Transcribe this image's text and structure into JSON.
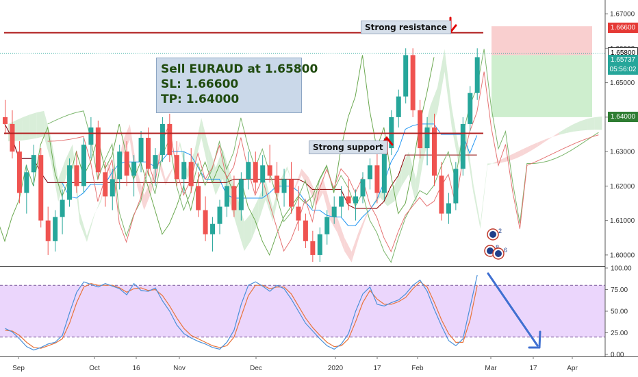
{
  "chart_data": [
    {
      "type": "candlestick",
      "panel": "price",
      "price_axis": {
        "min": 1.597,
        "max": 1.674,
        "ticks": [
          "1.67000",
          "1.66000",
          "1.65000",
          "1.64000",
          "1.63000",
          "1.62000",
          "1.61000",
          "1.60000"
        ]
      },
      "time_axis": {
        "ticks": [
          "Sep",
          "Oct",
          "16",
          "Nov",
          "Dec",
          "2020",
          "17",
          "Feb",
          "Mar",
          "17",
          "Apr"
        ]
      },
      "horizontal_levels": [
        {
          "id": "resistance",
          "value": 1.6645,
          "color": "#b22222",
          "label": "Strong resistance"
        },
        {
          "id": "support",
          "value": 1.6353,
          "color": "#b22222",
          "label": "Strong support"
        }
      ],
      "current_price_line": 1.6585,
      "price_tags": [
        {
          "value": "1.66600",
          "y": 1.666,
          "bg": "#e53935",
          "fg": "#ffffff"
        },
        {
          "value": "1.65800",
          "y": 1.6587,
          "bg": "#ffffff",
          "fg": "#000000"
        },
        {
          "value": "1.65737",
          "y": 1.6566,
          "bg": "#26a69a",
          "fg": "#ffffff"
        },
        {
          "value": "05:56:02",
          "y": 1.6538,
          "bg": "#26a69a",
          "fg": "#ffffff"
        },
        {
          "value": "1.64000",
          "y": 1.64,
          "bg": "#2e7d32",
          "fg": "#ffffff"
        }
      ],
      "trade_setup": {
        "entry": 1.658,
        "stop_loss": 1.666,
        "take_profit": 1.64,
        "loss_color": "#f8c7c7",
        "profit_color": "#c9ecc9"
      },
      "ohlc": [
        [
          1.64,
          1.645,
          1.635,
          1.638
        ],
        [
          1.638,
          1.642,
          1.628,
          1.63
        ],
        [
          1.63,
          1.633,
          1.615,
          1.618
        ],
        [
          1.618,
          1.626,
          1.612,
          1.624
        ],
        [
          1.624,
          1.632,
          1.62,
          1.629
        ],
        [
          1.629,
          1.631,
          1.608,
          1.61
        ],
        [
          1.61,
          1.614,
          1.6,
          1.604
        ],
        [
          1.604,
          1.613,
          1.601,
          1.611
        ],
        [
          1.611,
          1.619,
          1.606,
          1.616
        ],
        [
          1.616,
          1.628,
          1.614,
          1.626
        ],
        [
          1.626,
          1.63,
          1.618,
          1.62
        ],
        [
          1.62,
          1.634,
          1.618,
          1.632
        ],
        [
          1.632,
          1.64,
          1.628,
          1.637
        ],
        [
          1.637,
          1.639,
          1.622,
          1.624
        ],
        [
          1.624,
          1.627,
          1.614,
          1.617
        ],
        [
          1.617,
          1.625,
          1.613,
          1.622
        ],
        [
          1.622,
          1.632,
          1.619,
          1.63
        ],
        [
          1.63,
          1.633,
          1.62,
          1.623
        ],
        [
          1.623,
          1.629,
          1.617,
          1.627
        ],
        [
          1.627,
          1.636,
          1.624,
          1.634
        ],
        [
          1.634,
          1.637,
          1.623,
          1.625
        ],
        [
          1.625,
          1.631,
          1.62,
          1.629
        ],
        [
          1.629,
          1.64,
          1.627,
          1.638
        ],
        [
          1.638,
          1.641,
          1.627,
          1.629
        ],
        [
          1.629,
          1.633,
          1.62,
          1.622
        ],
        [
          1.622,
          1.63,
          1.618,
          1.627
        ],
        [
          1.627,
          1.631,
          1.618,
          1.62
        ],
        [
          1.62,
          1.624,
          1.611,
          1.613
        ],
        [
          1.613,
          1.617,
          1.604,
          1.606
        ],
        [
          1.606,
          1.611,
          1.601,
          1.609
        ],
        [
          1.609,
          1.616,
          1.606,
          1.614
        ],
        [
          1.614,
          1.622,
          1.611,
          1.62
        ],
        [
          1.62,
          1.623,
          1.611,
          1.613
        ],
        [
          1.613,
          1.624,
          1.61,
          1.622
        ],
        [
          1.622,
          1.63,
          1.619,
          1.627
        ],
        [
          1.627,
          1.63,
          1.618,
          1.621
        ],
        [
          1.621,
          1.629,
          1.617,
          1.626
        ],
        [
          1.626,
          1.632,
          1.621,
          1.623
        ],
        [
          1.623,
          1.627,
          1.616,
          1.618
        ],
        [
          1.618,
          1.625,
          1.614,
          1.622
        ],
        [
          1.622,
          1.627,
          1.612,
          1.614
        ],
        [
          1.614,
          1.62,
          1.607,
          1.61
        ],
        [
          1.61,
          1.612,
          1.602,
          1.604
        ],
        [
          1.604,
          1.607,
          1.598,
          1.6
        ],
        [
          1.6,
          1.608,
          1.598,
          1.606
        ],
        [
          1.606,
          1.613,
          1.603,
          1.611
        ],
        [
          1.611,
          1.617,
          1.609,
          1.614
        ],
        [
          1.614,
          1.62,
          1.611,
          1.617
        ],
        [
          1.617,
          1.622,
          1.613,
          1.615
        ],
        [
          1.615,
          1.619,
          1.61,
          1.617
        ],
        [
          1.617,
          1.624,
          1.615,
          1.622
        ],
        [
          1.622,
          1.628,
          1.619,
          1.626
        ],
        [
          1.626,
          1.631,
          1.615,
          1.618
        ],
        [
          1.618,
          1.634,
          1.616,
          1.631
        ],
        [
          1.631,
          1.642,
          1.629,
          1.64
        ],
        [
          1.64,
          1.648,
          1.637,
          1.646
        ],
        [
          1.646,
          1.66,
          1.644,
          1.658
        ],
        [
          1.658,
          1.66,
          1.64,
          1.642
        ],
        [
          1.642,
          1.645,
          1.628,
          1.631
        ],
        [
          1.631,
          1.64,
          1.626,
          1.637
        ],
        [
          1.637,
          1.641,
          1.62,
          1.623
        ],
        [
          1.623,
          1.627,
          1.61,
          1.612
        ],
        [
          1.612,
          1.618,
          1.609,
          1.615
        ],
        [
          1.615,
          1.627,
          1.613,
          1.625
        ],
        [
          1.625,
          1.64,
          1.623,
          1.638
        ],
        [
          1.638,
          1.649,
          1.636,
          1.647
        ],
        [
          1.647,
          1.66,
          1.645,
          1.6574
        ]
      ],
      "stoch_panel": {
        "min": 0,
        "max": 100,
        "ticks": [
          "100.00",
          "75.00",
          "50.00",
          "25.00",
          "0.00"
        ],
        "upper_band": 80,
        "lower_band": 20,
        "k_color": "#4a90d9",
        "d_color": "#e8743b",
        "k": [
          30,
          26,
          18,
          9,
          5,
          8,
          12,
          14,
          22,
          48,
          72,
          84,
          81,
          78,
          82,
          79,
          76,
          69,
          82,
          74,
          73,
          77,
          62,
          50,
          34,
          24,
          19,
          15,
          12,
          8,
          6,
          14,
          28,
          58,
          80,
          84,
          79,
          73,
          80,
          76,
          64,
          50,
          36,
          27,
          18,
          10,
          6,
          12,
          24,
          50,
          70,
          78,
          58,
          56,
          60,
          63,
          70,
          80,
          86,
          73,
          52,
          33,
          16,
          10,
          18,
          55,
          92
        ],
        "d": [
          28,
          27,
          22,
          14,
          8,
          7,
          10,
          13,
          18,
          36,
          60,
          78,
          82,
          80,
          80,
          80,
          77,
          72,
          76,
          77,
          74,
          75,
          68,
          56,
          42,
          30,
          22,
          18,
          14,
          10,
          8,
          10,
          20,
          44,
          68,
          80,
          80,
          76,
          78,
          78,
          70,
          56,
          42,
          31,
          22,
          14,
          9,
          10,
          18,
          38,
          60,
          74,
          64,
          58,
          58,
          61,
          66,
          76,
          84,
          78,
          60,
          40,
          24,
          14,
          14,
          40,
          80
        ]
      }
    }
  ],
  "annotations": {
    "trade_box": {
      "line1": "Sell EURAUD at 1.65800",
      "line2": "SL: 1.66600",
      "line3": "TP: 1.64000"
    }
  },
  "event_markers": [
    "2",
    "8",
    "6"
  ],
  "colors": {
    "bull": "#26a69a",
    "bear": "#ef5350",
    "arrow": "#e00000",
    "forecast_arrow": "#3f6fd1",
    "kumo_bull": "#cfeacf",
    "kumo_bear": "#f6cccc"
  }
}
